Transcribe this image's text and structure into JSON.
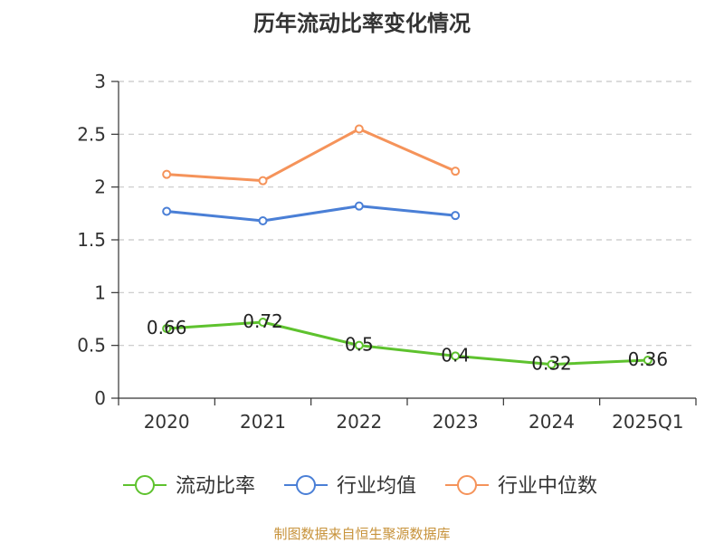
{
  "chart_data": {
    "type": "line",
    "title": "历年流动比率变化情况",
    "categories": [
      "2020",
      "2021",
      "2022",
      "2023",
      "2024",
      "2025Q1"
    ],
    "y_ticks": [
      "0",
      "0.5",
      "1",
      "1.5",
      "2",
      "2.5",
      "3"
    ],
    "ylim": [
      0,
      3
    ],
    "grid": true,
    "legend_position": "bottom",
    "series": [
      {
        "name": "流动比率",
        "color": "#5ec22e",
        "values": [
          0.66,
          0.72,
          0.5,
          0.4,
          0.32,
          0.36
        ],
        "labels": [
          "0.66",
          "0.72",
          "0.5",
          "0.4",
          "0.32",
          "0.36"
        ],
        "show_labels": true
      },
      {
        "name": "行业均值",
        "color": "#4a7fd6",
        "values": [
          1.77,
          1.68,
          1.82,
          1.73,
          null,
          null
        ],
        "show_labels": false
      },
      {
        "name": "行业中位数",
        "color": "#f5935a",
        "values": [
          2.12,
          2.06,
          2.55,
          2.15,
          null,
          null
        ],
        "show_labels": false
      }
    ]
  },
  "footer": {
    "source": "制图数据来自恒生聚源数据库"
  }
}
